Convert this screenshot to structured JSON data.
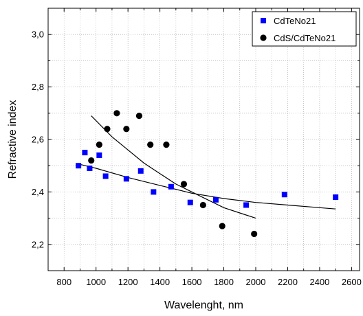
{
  "chart_data": {
    "type": "scatter",
    "title": "",
    "xlabel": "Wavelenght, nm",
    "ylabel": "Refractive index",
    "xlim": [
      700,
      2650
    ],
    "ylim": [
      2.1,
      3.1
    ],
    "x_ticks": [
      800,
      1000,
      1200,
      1400,
      1600,
      1800,
      2000,
      2200,
      2400,
      2600
    ],
    "x_tick_labels": [
      "800",
      "1000",
      "1200",
      "1400",
      "1600",
      "1800",
      "2000",
      "2200",
      "2400",
      "2600"
    ],
    "y_ticks": [
      2.2,
      2.4,
      2.6,
      2.8,
      3.0
    ],
    "y_tick_labels": [
      "2,2",
      "2,4",
      "2,6",
      "2,8",
      "3,0"
    ],
    "grid": true,
    "legend_position": "top-right",
    "series": [
      {
        "name": "CdTeNo21",
        "marker": "square",
        "color": "#0000ff",
        "points": [
          [
            890,
            2.5
          ],
          [
            930,
            2.55
          ],
          [
            960,
            2.49
          ],
          [
            1020,
            2.54
          ],
          [
            1060,
            2.46
          ],
          [
            1190,
            2.45
          ],
          [
            1280,
            2.48
          ],
          [
            1360,
            2.4
          ],
          [
            1470,
            2.42
          ],
          [
            1590,
            2.36
          ],
          [
            1750,
            2.37
          ],
          [
            1940,
            2.35
          ],
          [
            2180,
            2.39
          ],
          [
            2500,
            2.38
          ]
        ],
        "fit": [
          [
            900,
            2.505
          ],
          [
            1000,
            2.49
          ],
          [
            1200,
            2.455
          ],
          [
            1400,
            2.425
          ],
          [
            1600,
            2.395
          ],
          [
            1800,
            2.375
          ],
          [
            2000,
            2.36
          ],
          [
            2200,
            2.35
          ],
          [
            2400,
            2.34
          ],
          [
            2500,
            2.335
          ]
        ]
      },
      {
        "name": "CdS/CdTeNo21",
        "marker": "circle",
        "color": "#000000",
        "points": [
          [
            970,
            2.52
          ],
          [
            1020,
            2.58
          ],
          [
            1070,
            2.64
          ],
          [
            1130,
            2.7
          ],
          [
            1190,
            2.64
          ],
          [
            1270,
            2.69
          ],
          [
            1340,
            2.58
          ],
          [
            1440,
            2.58
          ],
          [
            1550,
            2.43
          ],
          [
            1670,
            2.35
          ],
          [
            1790,
            2.27
          ],
          [
            1990,
            2.24
          ]
        ],
        "fit": [
          [
            970,
            2.69
          ],
          [
            1100,
            2.61
          ],
          [
            1200,
            2.56
          ],
          [
            1300,
            2.51
          ],
          [
            1400,
            2.47
          ],
          [
            1500,
            2.43
          ],
          [
            1600,
            2.4
          ],
          [
            1700,
            2.37
          ],
          [
            1800,
            2.34
          ],
          [
            1900,
            2.32
          ],
          [
            2000,
            2.3
          ]
        ]
      }
    ]
  }
}
